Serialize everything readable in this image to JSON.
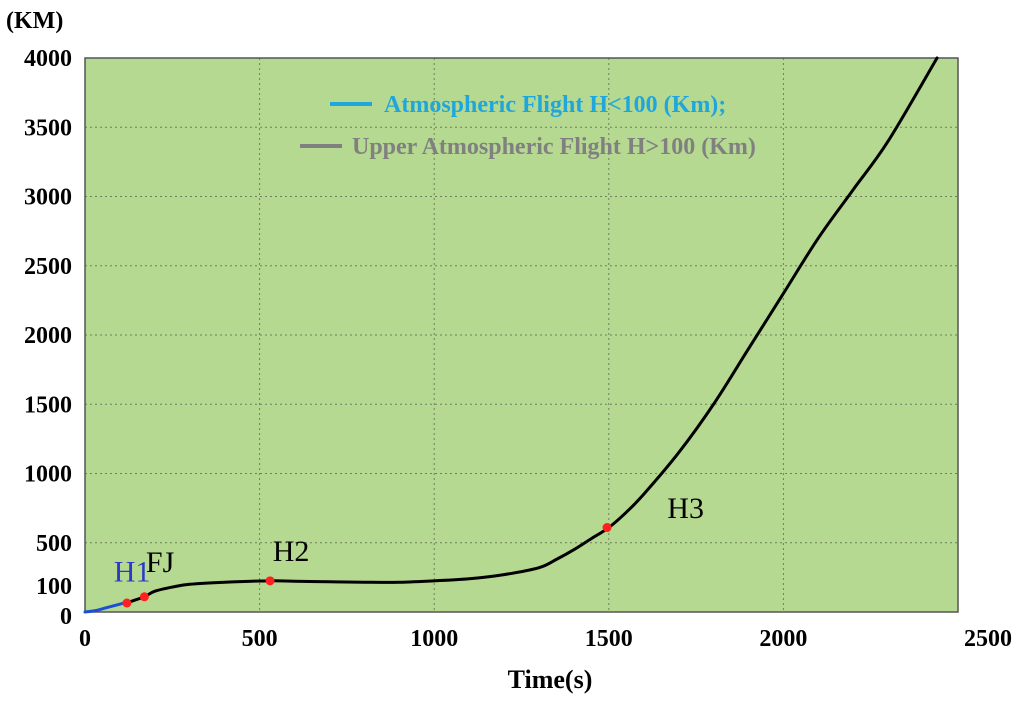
{
  "chart_data": {
    "type": "line",
    "title": "",
    "ylabel": "(KM)",
    "xlabel": "Time(s)",
    "xlim": [
      0,
      2500
    ],
    "ylim": [
      0,
      4000
    ],
    "grid": true,
    "background_color": "#b5d991",
    "x_ticks": [
      0,
      500,
      1000,
      1500,
      2000,
      2500
    ],
    "x_tick_labels": [
      "0",
      "500",
      "1000",
      "1500",
      "2000",
      "2500"
    ],
    "y_tick_labels": [
      "0",
      "100",
      "500",
      "1000",
      "1500",
      "2000",
      "2500",
      "3000",
      "3500",
      "4000"
    ],
    "y_ticks": [
      0,
      100,
      500,
      1000,
      1500,
      2000,
      2500,
      3000,
      3500,
      4000
    ],
    "legend_position": "top-right",
    "series": [
      {
        "name": "Atmospheric Flight H<100 (Km);",
        "color": "#1d4fd6",
        "legend_color": "#1fa7dc",
        "x": [
          0,
          30,
          60,
          90,
          120,
          130
        ],
        "y": [
          0,
          10,
          30,
          50,
          70,
          75
        ]
      },
      {
        "name": "Upper Atmospheric Flight H>100 (Km)",
        "color": "#000000",
        "legend_color": "#808080",
        "x": [
          130,
          170,
          200,
          250,
          300,
          400,
          530,
          600,
          700,
          800,
          900,
          1000,
          1100,
          1200,
          1300,
          1350,
          1400,
          1450,
          1500,
          1550,
          1600,
          1700,
          1800,
          1900,
          2000,
          2100,
          2200,
          2300,
          2440
        ],
        "y": [
          75,
          110,
          150,
          180,
          200,
          215,
          225,
          222,
          218,
          215,
          215,
          225,
          240,
          270,
          320,
          380,
          450,
          530,
          610,
          720,
          850,
          1150,
          1500,
          1900,
          2300,
          2700,
          3050,
          3400,
          4000
        ]
      }
    ],
    "points": [
      {
        "label": "",
        "x": 120,
        "y": 65
      },
      {
        "label": "",
        "x": 170,
        "y": 110
      },
      {
        "label": "",
        "x": 530,
        "y": 225
      },
      {
        "label": "",
        "x": 1495,
        "y": 610
      }
    ],
    "annotations": [
      {
        "text": "H1",
        "x": 135,
        "y": 220,
        "color": "#2b39c6"
      },
      {
        "text": "FJ",
        "x": 215,
        "y": 290,
        "color": "#000000"
      },
      {
        "text": "H2",
        "x": 590,
        "y": 370,
        "color": "#000000"
      },
      {
        "text": "H3",
        "x": 1720,
        "y": 680,
        "color": "#000000"
      }
    ],
    "marker_color": "#ff2020"
  }
}
